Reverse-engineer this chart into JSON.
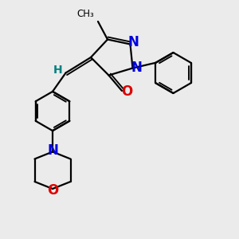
{
  "bg_color": "#ebebeb",
  "bond_color": "#000000",
  "N_color": "#0000dd",
  "O_color": "#dd0000",
  "H_color": "#008080",
  "figsize": [
    3.0,
    3.0
  ],
  "dpi": 100,
  "xlim": [
    0,
    10
  ],
  "ylim": [
    0,
    10
  ]
}
